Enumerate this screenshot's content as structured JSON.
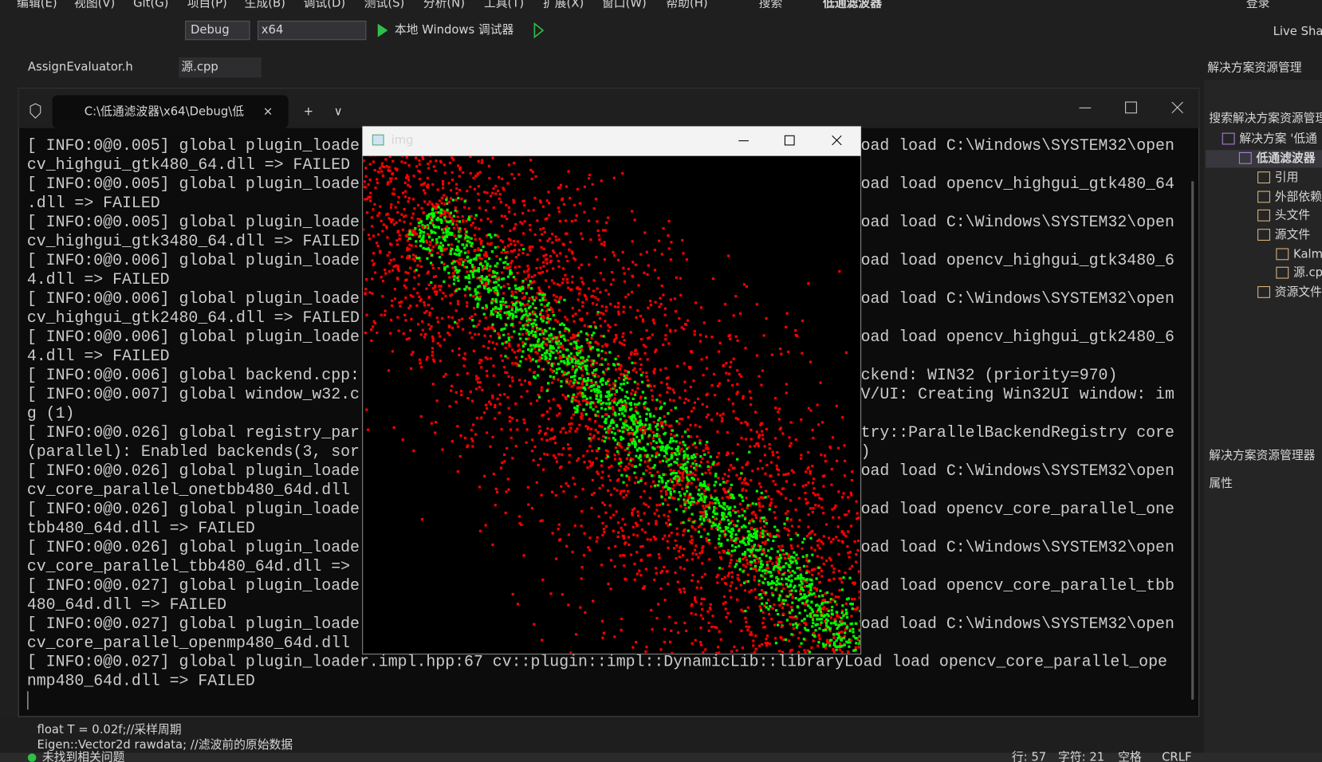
{
  "menu": [
    "编辑(E)",
    "视图(V)",
    "Git(G)",
    "项目(P)",
    "生成(B)",
    "调试(D)",
    "测试(S)",
    "分析(N)",
    "工具(T)",
    "扩展(X)",
    "窗口(W)",
    "帮助(H)",
    "搜索",
    "低通滤波器",
    "登录"
  ],
  "toolbar": {
    "config": "Debug",
    "platform": "x64",
    "run": "本地 Windows 调试器",
    "live_share": "Live Sha"
  },
  "tabs": [
    "AssignEvaluator.h",
    "源.cpp"
  ],
  "terminal": {
    "tab_title": "C:\\低通滤波器\\x64\\Debug\\低",
    "lines": [
      {
        "left": "[ INFO:0@0.005] global plugin_loade",
        "right": "oad load C:\\Windows\\SYSTEM32\\open"
      },
      {
        "left": "cv_highgui_gtk480_64.dll => FAILED"
      },
      {
        "left": "[ INFO:0@0.005] global plugin_loade",
        "right": "oad load opencv_highgui_gtk480_64"
      },
      {
        "left": ".dll => FAILED"
      },
      {
        "left": "[ INFO:0@0.005] global plugin_loade",
        "right": "oad load C:\\Windows\\SYSTEM32\\open"
      },
      {
        "left": "cv_highgui_gtk3480_64.dll => FAILED"
      },
      {
        "left": "[ INFO:0@0.006] global plugin_loade",
        "right": "oad load opencv_highgui_gtk3480_6"
      },
      {
        "left": "4.dll => FAILED"
      },
      {
        "left": "[ INFO:0@0.006] global plugin_loade",
        "right": "oad load C:\\Windows\\SYSTEM32\\open"
      },
      {
        "left": "cv_highgui_gtk2480_64.dll => FAILED"
      },
      {
        "left": "[ INFO:0@0.006] global plugin_loade",
        "right": "oad load opencv_highgui_gtk2480_6"
      },
      {
        "left": "4.dll => FAILED"
      },
      {
        "left": "[ INFO:0@0.006] global backend.cpp:",
        "right": "ckend: WIN32 (priority=970)"
      },
      {
        "left": "[ INFO:0@0.007] global window_w32.c",
        "right": "V/UI: Creating Win32UI window: im"
      },
      {
        "left": "g (1)"
      },
      {
        "left": "[ INFO:0@0.026] global registry_par",
        "right": "try::ParallelBackendRegistry core"
      },
      {
        "left": "(parallel): Enabled backends(3, sor",
        "right": ")"
      },
      {
        "left": "[ INFO:0@0.026] global plugin_loade",
        "right": "oad load C:\\Windows\\SYSTEM32\\open"
      },
      {
        "left": "cv_core_parallel_onetbb480_64d.dll"
      },
      {
        "left": "[ INFO:0@0.026] global plugin_loade",
        "right": "oad load opencv_core_parallel_one"
      },
      {
        "left": "tbb480_64d.dll => FAILED"
      },
      {
        "left": "[ INFO:0@0.026] global plugin_loade",
        "right": "oad load C:\\Windows\\SYSTEM32\\open"
      },
      {
        "left": "cv_core_parallel_tbb480_64d.dll =>"
      },
      {
        "left": "[ INFO:0@0.027] global plugin_loade",
        "right": "oad load opencv_core_parallel_tbb"
      },
      {
        "left": "480_64d.dll => FAILED"
      },
      {
        "left": "[ INFO:0@0.027] global plugin_loade",
        "right": "oad load C:\\Windows\\SYSTEM32\\open"
      },
      {
        "left": "cv_core_parallel_openmp480_64d.dll"
      },
      {
        "left": "[ INFO:0@0.027] global plugin_loader.impl.hpp:67 cv::plugin::impl::DynamicLib::libraryLoad load opencv_core_parallel_ope"
      },
      {
        "left": "nmp480_64d.dll => FAILED"
      }
    ]
  },
  "img_window": {
    "title": "img"
  },
  "solution_explorer": {
    "title": "解决方案资源管理",
    "search": "搜索解决方案资源管理",
    "items": [
      "解决方案 '低通",
      "低通滤波器",
      "引用",
      "外部依赖",
      "头文件",
      "源文件",
      "Kalm",
      "源.cp",
      "资源文件"
    ],
    "footer": "解决方案资源管理器",
    "properties": "属性"
  },
  "editor": {
    "lines": [
      "float T = 0.02f;//采样周期",
      "Eigen::Vector2d rawdata; //滤波前的原始数据"
    ]
  },
  "status": {
    "issues": "未找到相关问题",
    "line": "行: 57",
    "col": "字符: 21",
    "indent": "空格",
    "eol": "CRLF"
  }
}
